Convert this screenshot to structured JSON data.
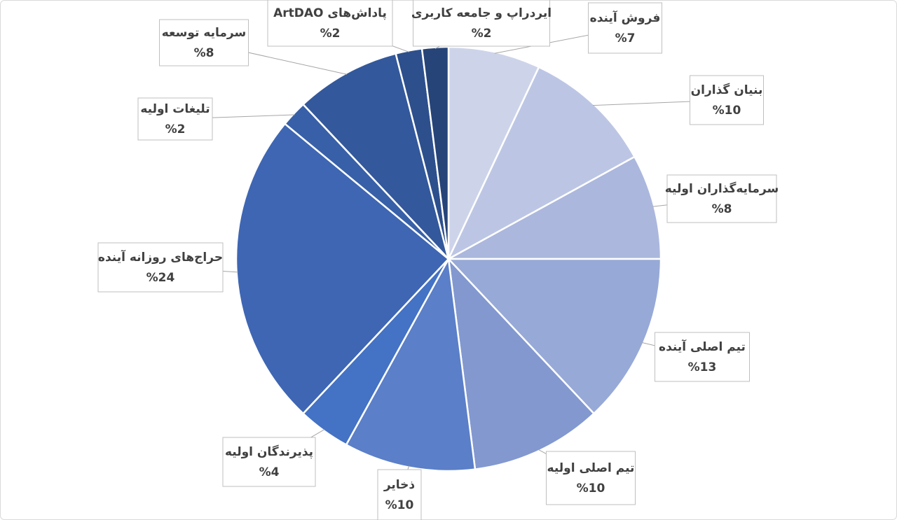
{
  "chart_data": {
    "type": "pie",
    "categories": [
      "فروش آینده",
      "بنیان گذاران",
      "سرمایه‌گذاران اولیه",
      "تیم اصلی آینده",
      "تیم اصلی اولیه",
      "ذخایر",
      "پذیرندگان اولیه",
      "حراج‌های روزانه آینده",
      "تلیغات اولیه",
      "سرمایه توسعه",
      "پاداش‌های ArtDAO",
      "ایردراپ و جامعه کاربری"
    ],
    "values": [
      7,
      10,
      8,
      13,
      10,
      10,
      4,
      24,
      2,
      8,
      2,
      2
    ],
    "value_labels": [
      "%7",
      "%10",
      "%8",
      "%13",
      "%10",
      "%10",
      "%4",
      "%24",
      "%2",
      "%8",
      "%2",
      "%2"
    ],
    "colors": [
      "#cdd4ea",
      "#bcc6e4",
      "#abb7dd",
      "#97a9d6",
      "#8298cf",
      "#5b7fc8",
      "#4472c4",
      "#3e66b3",
      "#3860a8",
      "#33589b",
      "#2d4f8c",
      "#264478"
    ]
  }
}
